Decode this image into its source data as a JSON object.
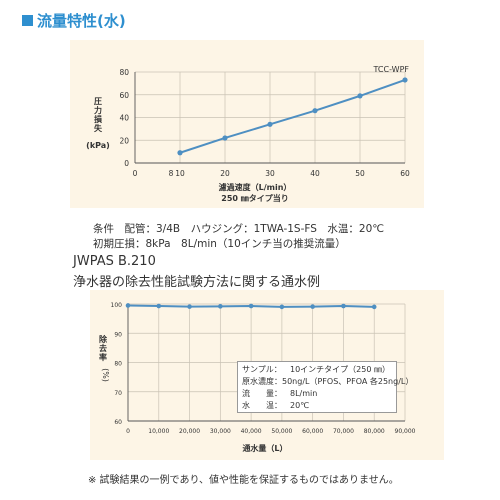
{
  "header": {
    "title": "流量特性(水)"
  },
  "notes": {
    "line1": "条件　配管：3/4B　ハウジング：1TWA-1S-FS　水温：20℃",
    "line2": "初期圧損：8kPa　8L/min（10インチ当の推奨流量）"
  },
  "section2": {
    "line1": "JWPAS B.210",
    "line2": "浄水器の除去性能試験方法に関する通水例"
  },
  "conditions_box": {
    "rows": [
      {
        "key": "サンプル：",
        "value": "10インチタイプ（250 ㎜）"
      },
      {
        "key": "原水濃度：",
        "value": "50ng/L（PFOS、PFOA 各25ng/L）"
      },
      {
        "key": "流　　量：",
        "value": "8L/min"
      },
      {
        "key": "水　　温：",
        "value": "20℃"
      }
    ]
  },
  "footer": {
    "text": "※ 試験結果の一例であり、値や性能を保証するものではありません。"
  },
  "colors": {
    "line": "#4e8fc2",
    "marker": "#4e8fc2",
    "panel": "#fdf5e6",
    "title": "#2e8fcf"
  },
  "chart_data": [
    {
      "type": "line",
      "ylabel": "圧力損失\n(kPa)",
      "xlabel": "濾過速度（L/min）",
      "xlabel2": "250 ㎜タイプ当り",
      "series": [
        {
          "name": "TCC-WPF",
          "x": [
            10,
            20,
            30,
            40,
            50,
            60
          ],
          "values": [
            9,
            22,
            34,
            46,
            59,
            73
          ]
        }
      ],
      "x_ticks": [
        "0",
        "8",
        "10",
        "20",
        "30",
        "40",
        "50",
        "60"
      ],
      "x_tick_values": [
        0,
        8,
        10,
        20,
        30,
        40,
        50,
        60
      ],
      "y_ticks": [
        "0",
        "20",
        "40",
        "60",
        "80"
      ],
      "y_tick_values": [
        0,
        20,
        40,
        60,
        80
      ],
      "xlim": [
        0,
        60
      ],
      "ylim": [
        0,
        80
      ],
      "grid": true
    },
    {
      "type": "line",
      "ylabel": "除去率\n(%)",
      "xlabel": "通水量（L）",
      "series": [
        {
          "name": "",
          "x": [
            0,
            10000,
            20000,
            30000,
            40000,
            50000,
            60000,
            70000,
            80000
          ],
          "values": [
            99.5,
            99.3,
            99.1,
            99.2,
            99.3,
            99.0,
            99.1,
            99.3,
            99.0
          ]
        }
      ],
      "x_ticks": [
        "0",
        "10,000",
        "20,000",
        "30,000",
        "40,000",
        "50,000",
        "60,000",
        "70,000",
        "80,000",
        "90,000"
      ],
      "x_tick_values": [
        0,
        10000,
        20000,
        30000,
        40000,
        50000,
        60000,
        70000,
        80000,
        90000
      ],
      "y_ticks": [
        "60",
        "70",
        "80",
        "90",
        "100"
      ],
      "y_tick_values": [
        60,
        70,
        80,
        90,
        100
      ],
      "xlim": [
        0,
        90000
      ],
      "ylim": [
        60,
        100
      ],
      "grid": true
    }
  ]
}
